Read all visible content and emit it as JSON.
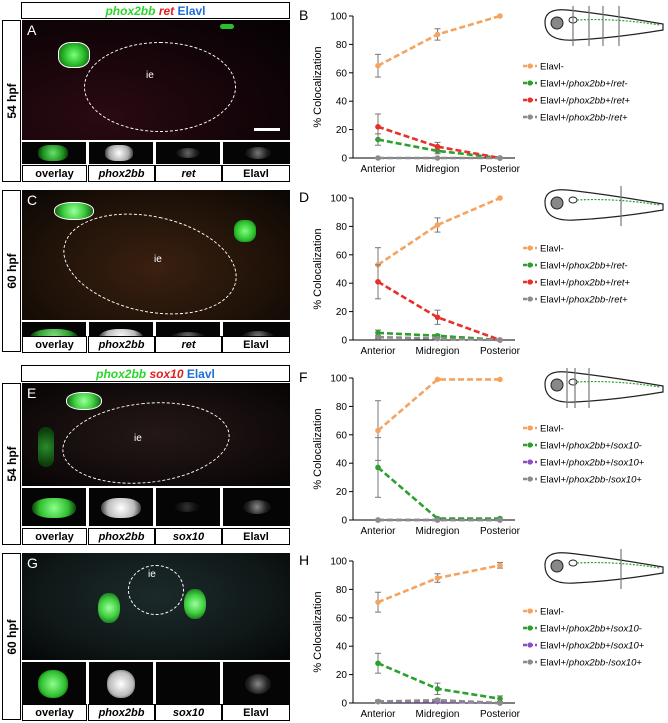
{
  "figure": {
    "section1": {
      "title_genes": [
        "phox2bb",
        "ret",
        "Elavl"
      ],
      "rows": [
        {
          "letter_image": "A",
          "letter_chart": "B",
          "hpf": "54 hpf"
        },
        {
          "letter_image": "C",
          "letter_chart": "D",
          "hpf": "60 hpf"
        }
      ],
      "channels": [
        "overlay",
        "phox2bb",
        "ret",
        "Elavl"
      ]
    },
    "section2": {
      "title_genes": [
        "phox2bb",
        "sox10",
        "Elavl"
      ],
      "rows": [
        {
          "letter_image": "E",
          "letter_chart": "F",
          "hpf": "54 hpf"
        },
        {
          "letter_image": "G",
          "letter_chart": "H",
          "hpf": "60 hpf"
        }
      ],
      "channels": [
        "overlay",
        "phox2bb",
        "sox10",
        "Elavl"
      ]
    },
    "ie_label": "ie"
  },
  "colors": {
    "elavl_neg": "#f4a460",
    "phox_pos_other_neg": "#2ca02c",
    "phox_pos_ret_pos": "#e8302a",
    "phox_neg_ret_pos": "#8c8c8c",
    "phox_pos_sox_pos": "#8a4fc7",
    "phox_neg_sox_pos": "#8c8c8c"
  },
  "chart_data": [
    {
      "panel": "B",
      "type": "line",
      "categories": [
        "Anterior",
        "Midregion",
        "Posterior"
      ],
      "ylabel": "% Colocalization",
      "ylim": [
        0,
        100
      ],
      "yticks": [
        0,
        20,
        40,
        60,
        80,
        100
      ],
      "series": [
        {
          "name": "Elavl-",
          "values": [
            65,
            87,
            100
          ],
          "errors": [
            8,
            4,
            0
          ]
        },
        {
          "name": "Elavl+/phox2bb+/ret-",
          "values": [
            13,
            5,
            0
          ],
          "errors": [
            4,
            2,
            0
          ]
        },
        {
          "name": "Elavl+/phox2bb+/ret+",
          "values": [
            22,
            8,
            0
          ],
          "errors": [
            9,
            3,
            0
          ]
        },
        {
          "name": "Elavl+/phox2bb-/ret+",
          "values": [
            0,
            0,
            0
          ],
          "errors": [
            0,
            0,
            0
          ]
        }
      ]
    },
    {
      "panel": "D",
      "type": "line",
      "categories": [
        "Anterior",
        "Midregion",
        "Posterior"
      ],
      "ylabel": "% Colocalization",
      "ylim": [
        0,
        100
      ],
      "yticks": [
        0,
        20,
        40,
        60,
        80,
        100
      ],
      "series": [
        {
          "name": "Elavl-",
          "values": [
            53,
            81,
            100
          ],
          "errors": [
            12,
            5,
            0
          ]
        },
        {
          "name": "Elavl+/phox2bb+/ret-",
          "values": [
            5,
            3,
            0
          ],
          "errors": [
            2,
            1,
            0
          ]
        },
        {
          "name": "Elavl+/phox2bb+/ret+",
          "values": [
            41,
            16,
            0
          ],
          "errors": [
            12,
            5,
            0
          ]
        },
        {
          "name": "Elavl+/phox2bb-/ret+",
          "values": [
            2,
            1,
            0
          ],
          "errors": [
            1,
            1,
            0
          ]
        }
      ]
    },
    {
      "panel": "F",
      "type": "line",
      "categories": [
        "Anterior",
        "Midregion",
        "Posterior"
      ],
      "ylabel": "% Colocalization",
      "ylim": [
        0,
        100
      ],
      "yticks": [
        0,
        20,
        40,
        60,
        80,
        100
      ],
      "series": [
        {
          "name": "Elavl-",
          "values": [
            63,
            99,
            99
          ],
          "errors": [
            21,
            0,
            0
          ]
        },
        {
          "name": "Elavl+/phox2bb+/sox10-",
          "values": [
            37,
            1,
            1
          ],
          "errors": [
            21,
            0,
            0
          ]
        },
        {
          "name": "Elavl+/phox2bb+/sox10+",
          "values": [
            0,
            0,
            0
          ],
          "errors": [
            0,
            0,
            0
          ]
        },
        {
          "name": "Elavl+/phox2bb-/sox10+",
          "values": [
            0,
            0,
            0
          ],
          "errors": [
            0,
            0,
            0
          ]
        }
      ]
    },
    {
      "panel": "H",
      "type": "line",
      "categories": [
        "Anterior",
        "Midregion",
        "Posterior"
      ],
      "ylabel": "% Colocalization",
      "ylim": [
        0,
        100
      ],
      "yticks": [
        0,
        20,
        40,
        60,
        80,
        100
      ],
      "series": [
        {
          "name": "Elavl-",
          "values": [
            71,
            88,
            97
          ],
          "errors": [
            7,
            3,
            2
          ]
        },
        {
          "name": "Elavl+/phox2bb+/sox10-",
          "values": [
            28,
            10,
            3
          ],
          "errors": [
            7,
            4,
            2
          ]
        },
        {
          "name": "Elavl+/phox2bb+/sox10+",
          "values": [
            1,
            1,
            0
          ],
          "errors": [
            1,
            1,
            0
          ]
        },
        {
          "name": "Elavl+/phox2bb-/sox10+",
          "values": [
            1,
            2,
            0
          ],
          "errors": [
            1,
            1,
            0
          ]
        }
      ]
    }
  ]
}
